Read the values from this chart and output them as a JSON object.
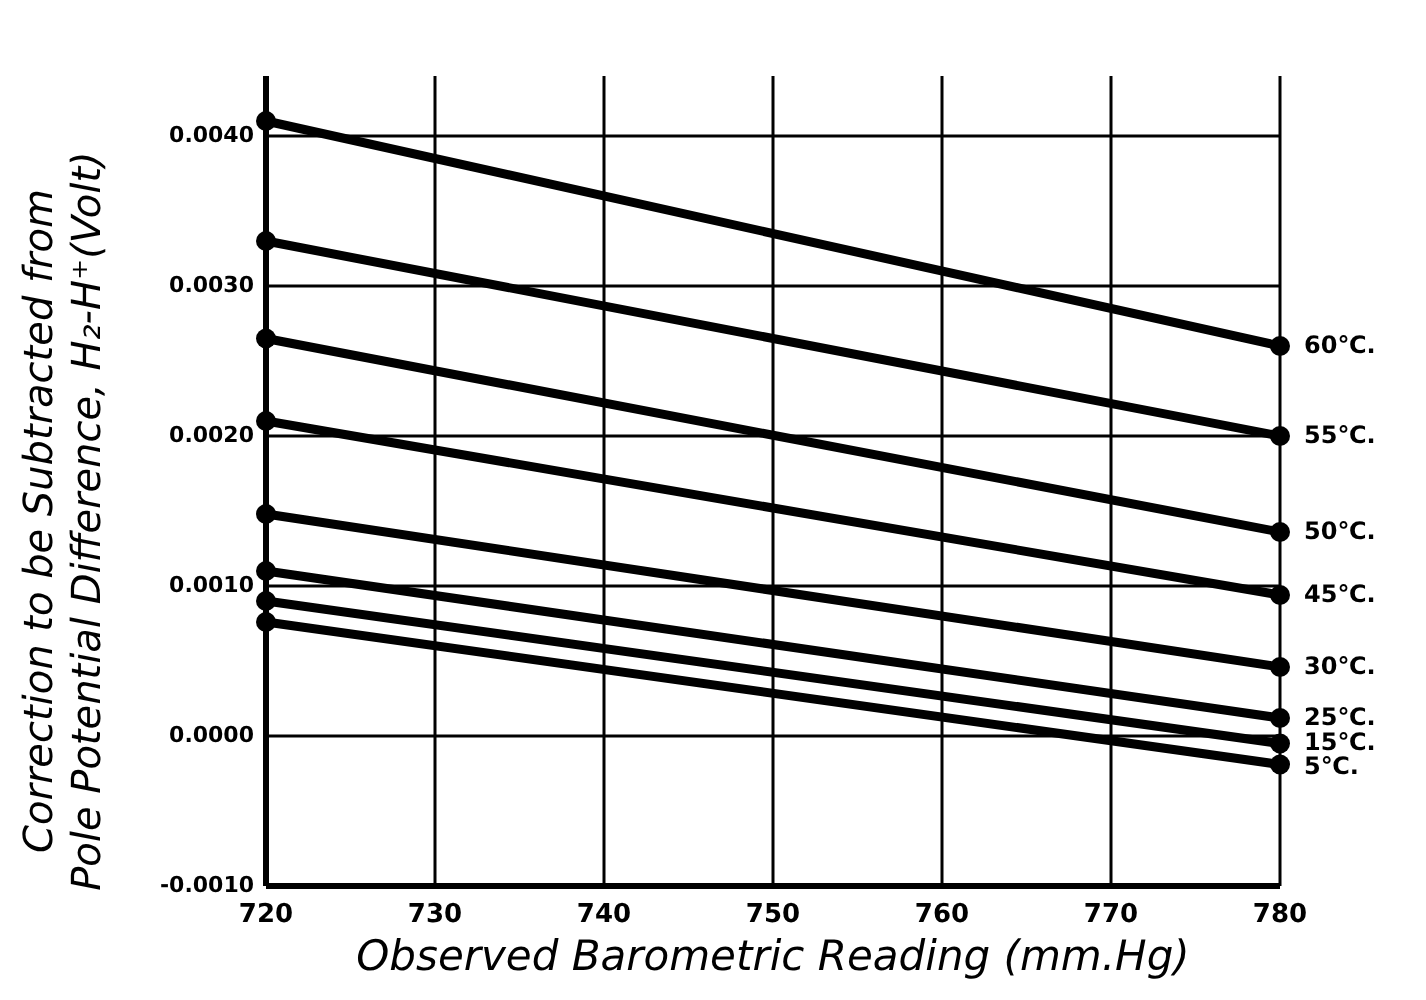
{
  "chart_data": {
    "type": "line",
    "xlabel": "Observed Barometric Reading (mm.Hg)",
    "ylabel": "Correction to be Subtracted from\nPole Potential Difference, H₂-H⁺(Volt)",
    "xlim": [
      720,
      780
    ],
    "xticks": [
      720,
      730,
      740,
      750,
      760,
      770,
      780
    ],
    "ylim": [
      -0.001,
      0.0044
    ],
    "yticks": [
      {
        "value": -0.001,
        "label": "-0.0010"
      },
      {
        "value": 0,
        "label": "0.0000"
      },
      {
        "value": 0.001,
        "label": "0.0010"
      },
      {
        "value": 0.002,
        "label": "0.0020"
      },
      {
        "value": 0.003,
        "label": "0.0030"
      },
      {
        "value": 0.004,
        "label": "0.0040"
      }
    ],
    "grid": true,
    "marker": "circle",
    "line_style": "solid",
    "x": [
      720,
      780
    ],
    "series": [
      {
        "name": "60℃.",
        "color": "#000000",
        "values": [
          0.0041,
          0.0026
        ]
      },
      {
        "name": "55℃.",
        "color": "#000000",
        "values": [
          0.0033,
          0.002
        ]
      },
      {
        "name": "50℃.",
        "color": "#000000",
        "values": [
          0.00265,
          0.00136
        ]
      },
      {
        "name": "45℃.",
        "color": "#000000",
        "values": [
          0.0021,
          0.00094
        ]
      },
      {
        "name": "30℃.",
        "color": "#000000",
        "values": [
          0.00148,
          0.00046
        ]
      },
      {
        "name": "25℃.",
        "color": "#000000",
        "values": [
          0.0011,
          0.00012
        ]
      },
      {
        "name": "15℃.",
        "color": "#000000",
        "values": [
          0.0009,
          -5e-05
        ]
      },
      {
        "name": "5℃.",
        "color": "#000000",
        "values": [
          0.00076,
          -0.00019
        ]
      }
    ]
  }
}
